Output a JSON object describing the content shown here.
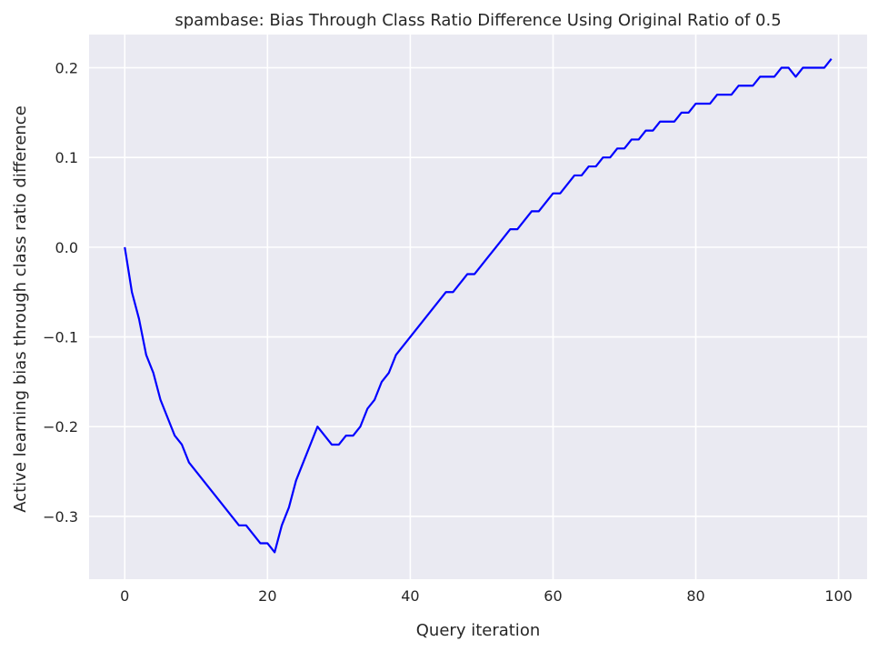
{
  "chart_data": {
    "type": "line",
    "title": "spambase: Bias Through Class Ratio Difference Using Original Ratio of 0.5",
    "xlabel": "Query iteration",
    "ylabel": "Active learning bias through class ratio difference",
    "xlim": [
      -5,
      104
    ],
    "ylim": [
      -0.37,
      0.237
    ],
    "xticks": [
      0,
      20,
      40,
      60,
      80,
      100
    ],
    "yticks": [
      -0.3,
      -0.2,
      -0.1,
      0.0,
      0.1,
      0.2
    ],
    "xtick_labels": [
      "0",
      "20",
      "40",
      "60",
      "80",
      "100"
    ],
    "ytick_labels": [
      "−0.3",
      "−0.2",
      "−0.1",
      "0.0",
      "0.1",
      "0.2"
    ],
    "grid": true,
    "background_color": "#eaeaf2",
    "grid_color": "#ffffff",
    "series": [
      {
        "color": "#0000ff",
        "x": [
          0,
          1,
          2,
          3,
          4,
          5,
          6,
          7,
          8,
          9,
          10,
          11,
          12,
          13,
          14,
          15,
          16,
          17,
          18,
          19,
          20,
          21,
          22,
          23,
          24,
          25,
          26,
          27,
          28,
          29,
          30,
          31,
          32,
          33,
          34,
          35,
          36,
          37,
          38,
          39,
          40,
          41,
          42,
          43,
          44,
          45,
          46,
          47,
          48,
          49,
          50,
          51,
          52,
          53,
          54,
          55,
          56,
          57,
          58,
          59,
          60,
          61,
          62,
          63,
          64,
          65,
          66,
          67,
          68,
          69,
          70,
          71,
          72,
          73,
          74,
          75,
          76,
          77,
          78,
          79,
          80,
          81,
          82,
          83,
          84,
          85,
          86,
          87,
          88,
          89,
          90,
          91,
          92,
          93,
          94,
          95,
          96,
          97,
          98,
          99
        ],
        "y": [
          0.0,
          -0.05,
          -0.08,
          -0.12,
          -0.14,
          -0.17,
          -0.19,
          -0.21,
          -0.22,
          -0.24,
          -0.25,
          -0.26,
          -0.27,
          -0.28,
          -0.29,
          -0.3,
          -0.31,
          -0.31,
          -0.32,
          -0.33,
          -0.33,
          -0.34,
          -0.31,
          -0.29,
          -0.26,
          -0.24,
          -0.22,
          -0.2,
          -0.21,
          -0.22,
          -0.22,
          -0.21,
          -0.21,
          -0.2,
          -0.18,
          -0.17,
          -0.15,
          -0.14,
          -0.12,
          -0.11,
          -0.1,
          -0.09,
          -0.08,
          -0.07,
          -0.06,
          -0.05,
          -0.05,
          -0.04,
          -0.03,
          -0.03,
          -0.02,
          -0.01,
          0.0,
          0.01,
          0.02,
          0.02,
          0.03,
          0.04,
          0.04,
          0.05,
          0.06,
          0.06,
          0.07,
          0.08,
          0.08,
          0.09,
          0.09,
          0.1,
          0.1,
          0.11,
          0.11,
          0.12,
          0.12,
          0.13,
          0.13,
          0.14,
          0.14,
          0.14,
          0.15,
          0.15,
          0.16,
          0.16,
          0.16,
          0.17,
          0.17,
          0.17,
          0.18,
          0.18,
          0.18,
          0.19,
          0.19,
          0.19,
          0.2,
          0.2,
          0.19,
          0.2,
          0.2,
          0.2,
          0.2,
          0.21
        ]
      }
    ]
  }
}
